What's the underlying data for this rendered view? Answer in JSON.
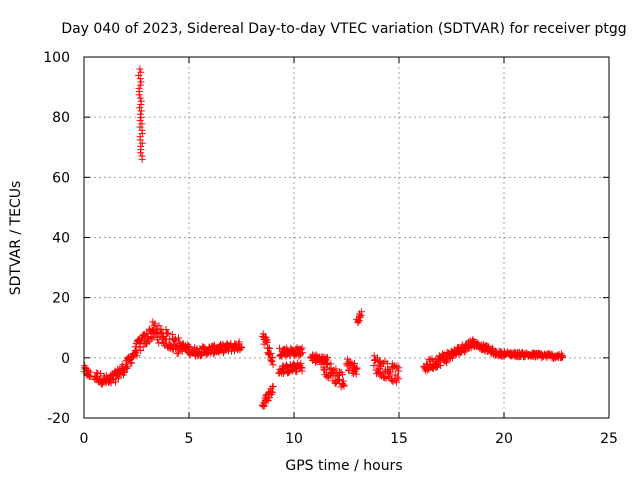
{
  "chart_data": {
    "type": "scatter",
    "title": "Day 040 of 2023, Sidereal Day-to-day VTEC variation (SDTVAR) for receiver ptgg",
    "xlabel": "GPS time / hours",
    "ylabel": "SDTVAR / TECUs",
    "xlim": [
      0,
      25
    ],
    "ylim": [
      -20,
      100
    ],
    "xticks": [
      0,
      5,
      10,
      15,
      20,
      25
    ],
    "yticks": [
      -20,
      0,
      20,
      40,
      60,
      80,
      100
    ],
    "x_tick_labels": [
      "0",
      "5",
      "10",
      "15",
      "20",
      "25"
    ],
    "y_tick_labels": [
      "-20",
      "0",
      "20",
      "40",
      "60",
      "80",
      "100"
    ],
    "grid": true,
    "marker": "plus",
    "color": "#ff0000",
    "series": [
      {
        "name": "SDTVAR",
        "segments": [
          {
            "x0": 0.0,
            "x1": 0.3,
            "y0": -4,
            "y1": -6,
            "spread": 1.5
          },
          {
            "x0": 0.5,
            "x1": 1.2,
            "y0": -6,
            "y1": -8,
            "spread": 1.8
          },
          {
            "x0": 1.2,
            "x1": 2.0,
            "y0": -8,
            "y1": -3,
            "spread": 2.0
          },
          {
            "x0": 2.0,
            "x1": 2.5,
            "y0": -3,
            "y1": 3,
            "spread": 2.0
          },
          {
            "x0": 2.5,
            "x1": 3.3,
            "y0": 3,
            "y1": 9,
            "spread": 2.5
          },
          {
            "x0": 3.3,
            "x1": 4.5,
            "y0": 9,
            "y1": 4,
            "spread": 3.0
          },
          {
            "x0": 4.5,
            "x1": 5.3,
            "y0": 4,
            "y1": 2,
            "spread": 1.5
          },
          {
            "x0": 5.3,
            "x1": 6.5,
            "y0": 2,
            "y1": 3,
            "spread": 1.5
          },
          {
            "x0": 6.5,
            "x1": 7.5,
            "y0": 3,
            "y1": 4,
            "spread": 1.5
          },
          {
            "x0": 8.5,
            "x1": 9.0,
            "y0": 8,
            "y1": -1,
            "spread": 2.0
          },
          {
            "x0": 8.5,
            "x1": 9.0,
            "y0": -16,
            "y1": -10,
            "spread": 1.5
          },
          {
            "x0": 9.3,
            "x1": 10.4,
            "y0": 2,
            "y1": 2,
            "spread": 1.5
          },
          {
            "x0": 9.3,
            "x1": 10.4,
            "y0": -4,
            "y1": -3,
            "spread": 1.5
          },
          {
            "x0": 10.8,
            "x1": 11.6,
            "y0": 0,
            "y1": -1,
            "spread": 1.5
          },
          {
            "x0": 11.4,
            "x1": 12.4,
            "y0": -3,
            "y1": -8,
            "spread": 3.0
          },
          {
            "x0": 12.5,
            "x1": 13.0,
            "y0": -2,
            "y1": -4,
            "spread": 2.0
          },
          {
            "x0": 13.0,
            "x1": 13.2,
            "y0": 12,
            "y1": 15,
            "spread": 1.0
          },
          {
            "x0": 13.8,
            "x1": 15.0,
            "y0": -2,
            "y1": -6,
            "spread": 3.0
          },
          {
            "x0": 16.2,
            "x1": 17.5,
            "y0": -3,
            "y1": 1,
            "spread": 2.0
          },
          {
            "x0": 17.5,
            "x1": 18.5,
            "y0": 1,
            "y1": 5,
            "spread": 1.5
          },
          {
            "x0": 18.5,
            "x1": 19.5,
            "y0": 5,
            "y1": 2,
            "spread": 1.0
          },
          {
            "x0": 19.5,
            "x1": 22.8,
            "y0": 1.5,
            "y1": 0.5,
            "spread": 0.8
          }
        ],
        "spike": {
          "x": 2.65,
          "y0": 96,
          "y1": 66
        }
      }
    ]
  }
}
